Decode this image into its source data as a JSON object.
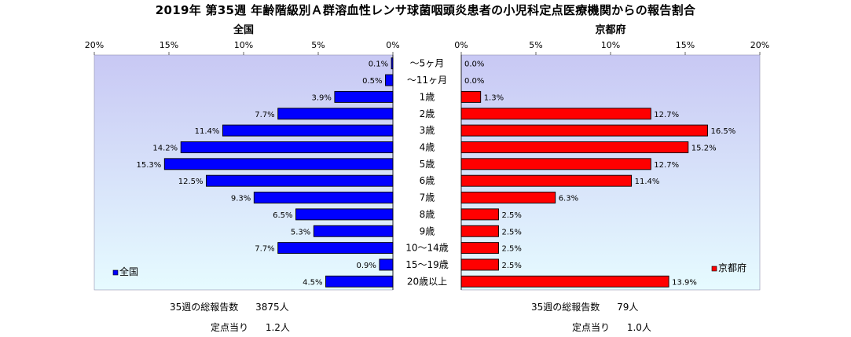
{
  "title": "2019年 第35週 年齢階級別Ａ群溶血性レンサ球菌咽頭炎患者の小児科定点医療機関からの報告割合",
  "chart_data": {
    "type": "bar",
    "orientation": "horizontal",
    "categories": [
      "～5ヶ月",
      "～11ヶ月",
      "1歳",
      "2歳",
      "3歳",
      "4歳",
      "5歳",
      "6歳",
      "7歳",
      "8歳",
      "9歳",
      "10～14歳",
      "15～19歳",
      "20歳以上"
    ],
    "tick_labels": [
      "0%",
      "5%",
      "10%",
      "15%",
      "20%"
    ],
    "xlim": [
      0,
      20
    ],
    "series": [
      {
        "name": "全国",
        "title": "全国",
        "legend": "全国",
        "color": "#0000ff",
        "values": [
          0.1,
          0.5,
          3.9,
          7.7,
          11.4,
          14.2,
          15.3,
          12.5,
          9.3,
          6.5,
          5.3,
          7.7,
          0.9,
          4.5
        ],
        "labels": [
          "0.1%",
          "0.5%",
          "3.9%",
          "7.7%",
          "11.4%",
          "14.2%",
          "15.3%",
          "12.5%",
          "9.3%",
          "6.5%",
          "5.3%",
          "7.7%",
          "0.9%",
          "4.5%"
        ]
      },
      {
        "name": "京都府",
        "title": "京都府",
        "legend": "京都府",
        "color": "#ff0000",
        "values": [
          0.0,
          0.0,
          1.3,
          12.7,
          16.5,
          15.2,
          12.7,
          11.4,
          6.3,
          2.5,
          2.5,
          2.5,
          2.5,
          13.9
        ],
        "labels": [
          "0.0%",
          "0.0%",
          "1.3%",
          "12.7%",
          "16.5%",
          "15.2%",
          "12.7%",
          "11.4%",
          "6.3%",
          "2.5%",
          "2.5%",
          "2.5%",
          "2.5%",
          "13.9%"
        ]
      }
    ]
  },
  "footer": {
    "left": {
      "total_label": "35週の総報告数",
      "total_value": "3875人",
      "per_label": "定点当り",
      "per_value": "1.2人"
    },
    "right": {
      "total_label": "35週の総報告数",
      "total_value": "79人",
      "per_label": "定点当り",
      "per_value": "1.0人"
    }
  }
}
